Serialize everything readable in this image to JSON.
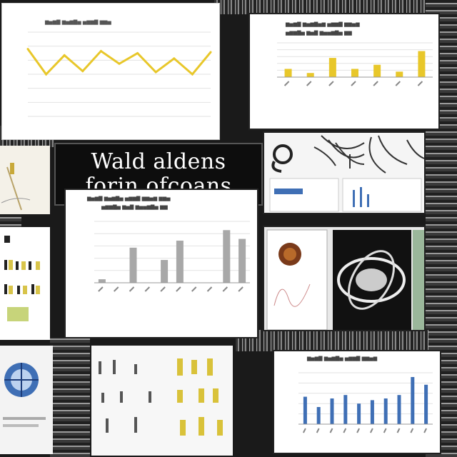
{
  "collage": {
    "headline_line1": "Wald aldens",
    "headline_line2": "forin ofcoans"
  },
  "colors": {
    "yellow_accent": "#e8c72a",
    "blue_accent": "#3f6fb5",
    "gray_bar": "#a8a8a8",
    "title_bg": "#0d0d0d"
  },
  "chart_data": [
    {
      "type": "line",
      "title": "",
      "series": [
        {
          "values": [
            64,
            40,
            58,
            43,
            62,
            50,
            60,
            42,
            55,
            40,
            61
          ]
        }
      ],
      "ylim": [
        0,
        80
      ]
    },
    {
      "type": "bar",
      "title": "",
      "values": [
        12,
        6,
        28,
        12,
        18,
        8,
        38
      ],
      "ylim": [
        0,
        50
      ]
    },
    {
      "type": "bar",
      "title": "",
      "values": [
        4,
        0,
        40,
        0,
        26,
        48,
        0,
        0,
        60,
        50
      ],
      "ylim": [
        0,
        70
      ]
    },
    {
      "type": "bar",
      "title": "",
      "values": [
        32,
        20,
        30,
        34,
        24,
        28,
        30,
        34,
        55,
        46
      ],
      "ylim": [
        0,
        60
      ]
    }
  ],
  "icons": {
    "anatomy": "bone-illustration-icon",
    "orbit": "orbit-sphere-icon",
    "nut": "nut-icon",
    "globe": "globe-icon"
  }
}
